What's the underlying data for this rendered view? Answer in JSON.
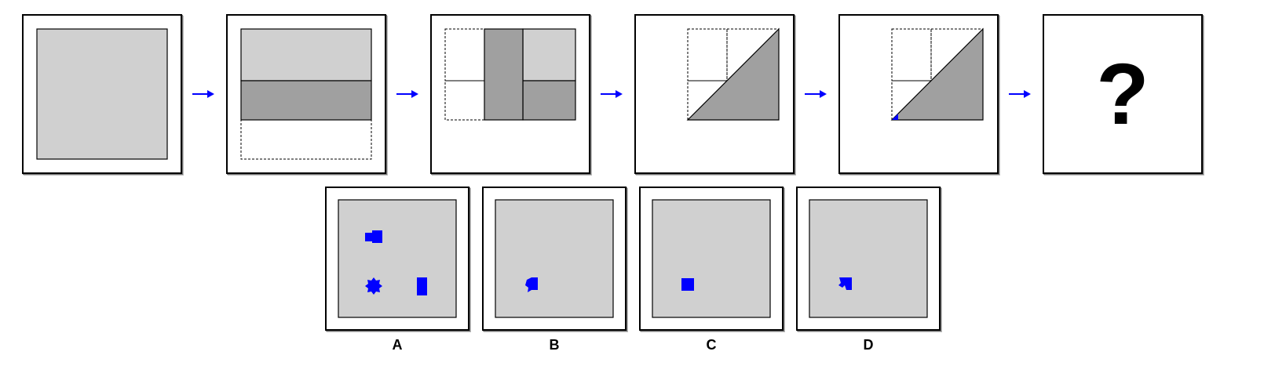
{
  "sequence": {
    "question_mark": "?",
    "arrow_color": "#0000ff",
    "paper_color": "#d0d0d0",
    "fold_color": "#a0a0a0",
    "hole_color": "#0000ff"
  },
  "options": [
    {
      "label": "A",
      "holes": [
        "square",
        "square",
        "star",
        "rectangle"
      ]
    },
    {
      "label": "B",
      "holes": [
        "notched-square"
      ]
    },
    {
      "label": "C",
      "holes": [
        "square"
      ]
    },
    {
      "label": "D",
      "holes": [
        "arrow-square"
      ]
    }
  ]
}
